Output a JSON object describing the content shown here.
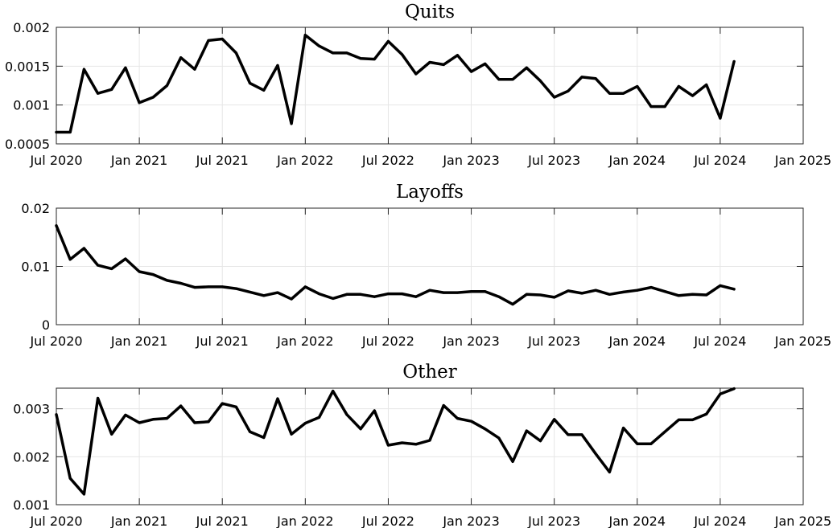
{
  "chart_data": [
    {
      "type": "line",
      "title": "Quits",
      "xlabel": "",
      "ylabel": "",
      "x_ticks": [
        "Jul 2020",
        "Jan 2021",
        "Jul 2021",
        "Jan 2022",
        "Jul 2022",
        "Jan 2023",
        "Jul 2023",
        "Jan 2024",
        "Jul 2024",
        "Jan 2025"
      ],
      "y_ticks": [
        "0.0005",
        "0.001",
        "0.0015",
        "0.002"
      ],
      "ylim": [
        0.0005,
        0.002
      ],
      "xlim": [
        "2020-07",
        "2025-01"
      ],
      "grid": true,
      "x": [
        "2020-07",
        "2020-08",
        "2020-09",
        "2020-10",
        "2020-11",
        "2020-12",
        "2021-01",
        "2021-02",
        "2021-03",
        "2021-04",
        "2021-05",
        "2021-06",
        "2021-07",
        "2021-08",
        "2021-09",
        "2021-10",
        "2021-11",
        "2021-12",
        "2022-01",
        "2022-02",
        "2022-03",
        "2022-04",
        "2022-05",
        "2022-06",
        "2022-07",
        "2022-08",
        "2022-09",
        "2022-10",
        "2022-11",
        "2022-12",
        "2023-01",
        "2023-02",
        "2023-03",
        "2023-04",
        "2023-05",
        "2023-06",
        "2023-07",
        "2023-08",
        "2023-09",
        "2023-10",
        "2023-11",
        "2023-12",
        "2024-01",
        "2024-02",
        "2024-03",
        "2024-04",
        "2024-05",
        "2024-06",
        "2024-07",
        "2024-08"
      ],
      "values": [
        0.00065,
        0.00065,
        0.00146,
        0.00115,
        0.0012,
        0.00148,
        0.00103,
        0.0011,
        0.00125,
        0.00161,
        0.00146,
        0.00183,
        0.00185,
        0.00167,
        0.00128,
        0.00119,
        0.00151,
        0.00076,
        0.0019,
        0.00176,
        0.00167,
        0.00167,
        0.0016,
        0.00159,
        0.00182,
        0.00165,
        0.0014,
        0.00155,
        0.00152,
        0.00164,
        0.00143,
        0.00153,
        0.00133,
        0.00133,
        0.00148,
        0.00131,
        0.0011,
        0.00118,
        0.00136,
        0.00134,
        0.00115,
        0.00115,
        0.00124,
        0.00098,
        0.00098,
        0.00124,
        0.00112,
        0.00126,
        0.00083,
        0.00156
      ]
    },
    {
      "type": "line",
      "title": "Layoffs",
      "xlabel": "",
      "ylabel": "",
      "x_ticks": [
        "Jul 2020",
        "Jan 2021",
        "Jul 2021",
        "Jan 2022",
        "Jul 2022",
        "Jan 2023",
        "Jul 2023",
        "Jan 2024",
        "Jul 2024",
        "Jan 2025"
      ],
      "y_ticks": [
        "0",
        "0.01",
        "0.02"
      ],
      "ylim": [
        0,
        0.02
      ],
      "xlim": [
        "2020-07",
        "2025-01"
      ],
      "grid": true,
      "x": [
        "2020-07",
        "2020-08",
        "2020-09",
        "2020-10",
        "2020-11",
        "2020-12",
        "2021-01",
        "2021-02",
        "2021-03",
        "2021-04",
        "2021-05",
        "2021-06",
        "2021-07",
        "2021-08",
        "2021-09",
        "2021-10",
        "2021-11",
        "2021-12",
        "2022-01",
        "2022-02",
        "2022-03",
        "2022-04",
        "2022-05",
        "2022-06",
        "2022-07",
        "2022-08",
        "2022-09",
        "2022-10",
        "2022-11",
        "2022-12",
        "2023-01",
        "2023-02",
        "2023-03",
        "2023-04",
        "2023-05",
        "2023-06",
        "2023-07",
        "2023-08",
        "2023-09",
        "2023-10",
        "2023-11",
        "2023-12",
        "2024-01",
        "2024-02",
        "2024-03",
        "2024-04",
        "2024-05",
        "2024-06",
        "2024-07",
        "2024-08"
      ],
      "values": [
        0.017,
        0.0112,
        0.0131,
        0.0102,
        0.0096,
        0.0113,
        0.0091,
        0.0086,
        0.0076,
        0.0071,
        0.0064,
        0.0065,
        0.0065,
        0.0062,
        0.0056,
        0.005,
        0.0055,
        0.0044,
        0.0065,
        0.0053,
        0.0045,
        0.0052,
        0.0052,
        0.0048,
        0.0053,
        0.0053,
        0.0048,
        0.0059,
        0.0055,
        0.0055,
        0.0057,
        0.0057,
        0.0048,
        0.0035,
        0.0052,
        0.0051,
        0.0047,
        0.0058,
        0.0054,
        0.0059,
        0.0052,
        0.0056,
        0.0059,
        0.0064,
        0.0057,
        0.005,
        0.0052,
        0.0051,
        0.0067,
        0.0061
      ]
    },
    {
      "type": "line",
      "title": "Other",
      "xlabel": "",
      "ylabel": "",
      "x_ticks": [
        "Jul 2020",
        "Jan 2021",
        "Jul 2021",
        "Jan 2022",
        "Jul 2022",
        "Jan 2023",
        "Jul 2023",
        "Jan 2024",
        "Jul 2024",
        "Jan 2025"
      ],
      "y_ticks": [
        "0.001",
        "0.002",
        "0.003"
      ],
      "ylim": [
        0.001,
        0.00343
      ],
      "xlim": [
        "2020-07",
        "2025-01"
      ],
      "grid": true,
      "x": [
        "2020-07",
        "2020-08",
        "2020-09",
        "2020-10",
        "2020-11",
        "2020-12",
        "2021-01",
        "2021-02",
        "2021-03",
        "2021-04",
        "2021-05",
        "2021-06",
        "2021-07",
        "2021-08",
        "2021-09",
        "2021-10",
        "2021-11",
        "2021-12",
        "2022-01",
        "2022-02",
        "2022-03",
        "2022-04",
        "2022-05",
        "2022-06",
        "2022-07",
        "2022-08",
        "2022-09",
        "2022-10",
        "2022-11",
        "2022-12",
        "2023-01",
        "2023-02",
        "2023-03",
        "2023-04",
        "2023-05",
        "2023-06",
        "2023-07",
        "2023-08",
        "2023-09",
        "2023-10",
        "2023-11",
        "2023-12",
        "2024-01",
        "2024-02",
        "2024-03",
        "2024-04",
        "2024-05",
        "2024-06",
        "2024-07",
        "2024-08"
      ],
      "values": [
        0.00288,
        0.00155,
        0.00122,
        0.00322,
        0.00247,
        0.00287,
        0.00271,
        0.00278,
        0.0028,
        0.00306,
        0.00271,
        0.00273,
        0.00311,
        0.00304,
        0.00252,
        0.0024,
        0.00321,
        0.00247,
        0.0027,
        0.00282,
        0.00337,
        0.00288,
        0.00258,
        0.00296,
        0.00224,
        0.00229,
        0.00226,
        0.00234,
        0.00307,
        0.0028,
        0.00274,
        0.00258,
        0.00239,
        0.0019,
        0.00254,
        0.00233,
        0.00278,
        0.00246,
        0.00246,
        0.00206,
        0.00168,
        0.0026,
        0.00227,
        0.00227,
        0.00252,
        0.00277,
        0.00277,
        0.00289,
        0.00331,
        0.00342
      ]
    }
  ]
}
